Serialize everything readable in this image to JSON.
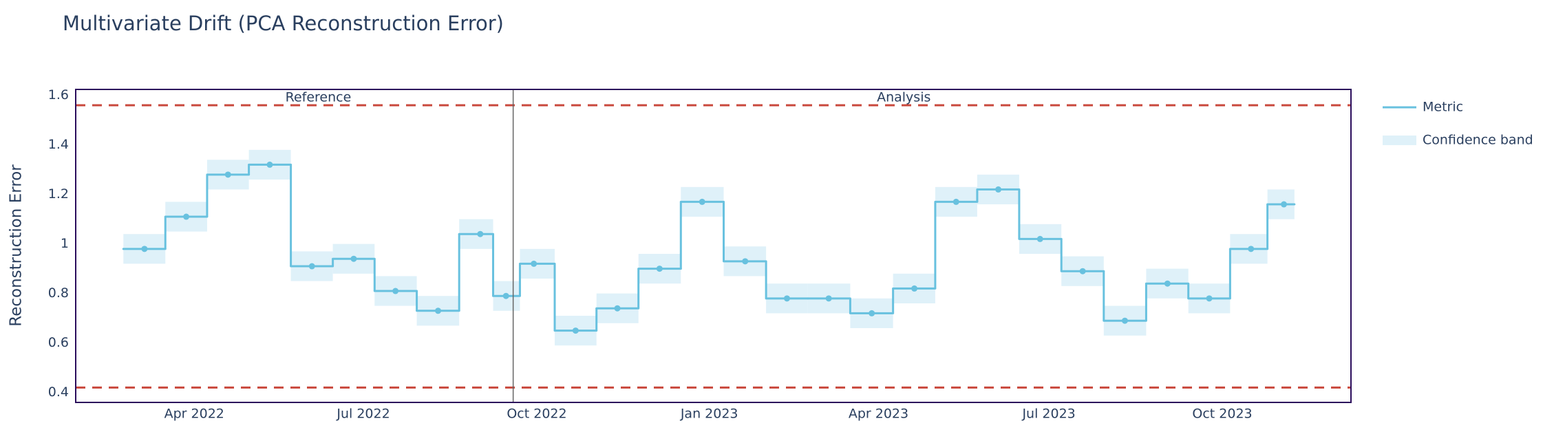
{
  "chart_data": {
    "type": "step",
    "title": "Multivariate Drift (PCA Reconstruction Error)",
    "y_label": "Reconstruction Error",
    "x": [
      0,
      0.99,
      1.98,
      2.97,
      3.97,
      4.96,
      5.95,
      6.96,
      7.96,
      8.57,
      9.23,
      10.22,
      11.21,
      12.21,
      13.22,
      14.24,
      15.23,
      16.22,
      17.24,
      18.25,
      19.24,
      20.24,
      21.23,
      22.24,
      23.24,
      24.25,
      25.24,
      26.23,
      27.01
    ],
    "series": [
      {
        "name": "Metric",
        "color": "#68c1df",
        "values": [
          0.98,
          1.11,
          1.28,
          1.32,
          0.91,
          0.94,
          0.81,
          0.73,
          1.04,
          0.79,
          0.92,
          0.65,
          0.74,
          0.9,
          1.17,
          0.93,
          0.78,
          0.78,
          0.72,
          0.82,
          1.17,
          1.22,
          1.02,
          0.89,
          0.69,
          0.84,
          0.78,
          0.98,
          1.16
        ]
      },
      {
        "name": "Confidence band",
        "color": "#dff1f9",
        "lower": [
          0.92,
          1.05,
          1.22,
          1.26,
          0.85,
          0.88,
          0.75,
          0.67,
          0.98,
          0.73,
          0.86,
          0.59,
          0.68,
          0.84,
          1.11,
          0.87,
          0.72,
          0.72,
          0.66,
          0.76,
          1.11,
          1.16,
          0.96,
          0.83,
          0.63,
          0.78,
          0.72,
          0.92,
          1.1
        ],
        "upper": [
          1.04,
          1.17,
          1.34,
          1.38,
          0.97,
          1.0,
          0.87,
          0.79,
          1.1,
          0.85,
          0.98,
          0.71,
          0.8,
          0.96,
          1.23,
          0.99,
          0.84,
          0.84,
          0.78,
          0.88,
          1.23,
          1.28,
          1.08,
          0.95,
          0.75,
          0.9,
          0.84,
          1.04,
          1.22
        ]
      }
    ],
    "thresholds": {
      "upper": 1.56,
      "lower": 0.42,
      "color": "#c9483c"
    },
    "periods": {
      "divider": 8.74,
      "labels": [
        "Reference",
        "Analysis"
      ]
    },
    "xlim": [
      -1.63,
      28.6
    ],
    "xticks": [
      {
        "value": 1.18,
        "label": "Apr 2022"
      },
      {
        "value": 5.19,
        "label": "Jul 2022"
      },
      {
        "value": 9.3,
        "label": "Oct 2022"
      },
      {
        "value": 13.39,
        "label": "Jan 2023"
      },
      {
        "value": 17.4,
        "label": "Apr 2023"
      },
      {
        "value": 21.44,
        "label": "Jul 2023"
      },
      {
        "value": 25.55,
        "label": "Oct 2023"
      }
    ],
    "ylim": [
      0.36,
      1.624
    ],
    "yticks": [
      0.4,
      0.6,
      0.8,
      1,
      1.2,
      1.4,
      1.6
    ],
    "grid": false
  }
}
